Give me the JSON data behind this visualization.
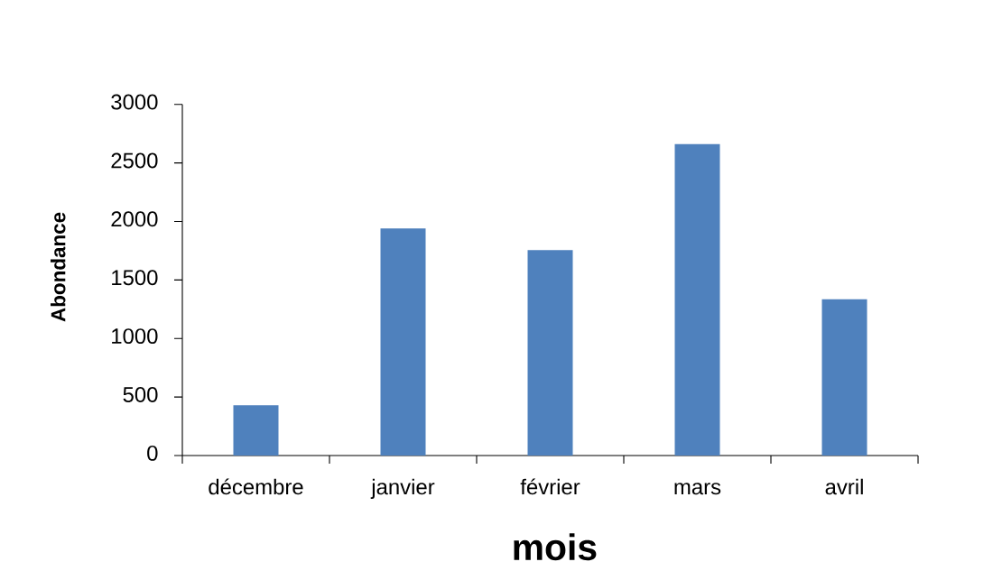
{
  "chart_data": {
    "type": "bar",
    "xlabel": "mois",
    "ylabel": "Abondance",
    "categories": [
      "décembre",
      "janvier",
      "février",
      "mars",
      "avril"
    ],
    "values": [
      430,
      1940,
      1755,
      2660,
      1335
    ],
    "color": "#4f81bd",
    "ylim": [
      0,
      3000
    ],
    "yticks": [
      0,
      500,
      1000,
      1500,
      2000,
      2500,
      3000
    ]
  }
}
